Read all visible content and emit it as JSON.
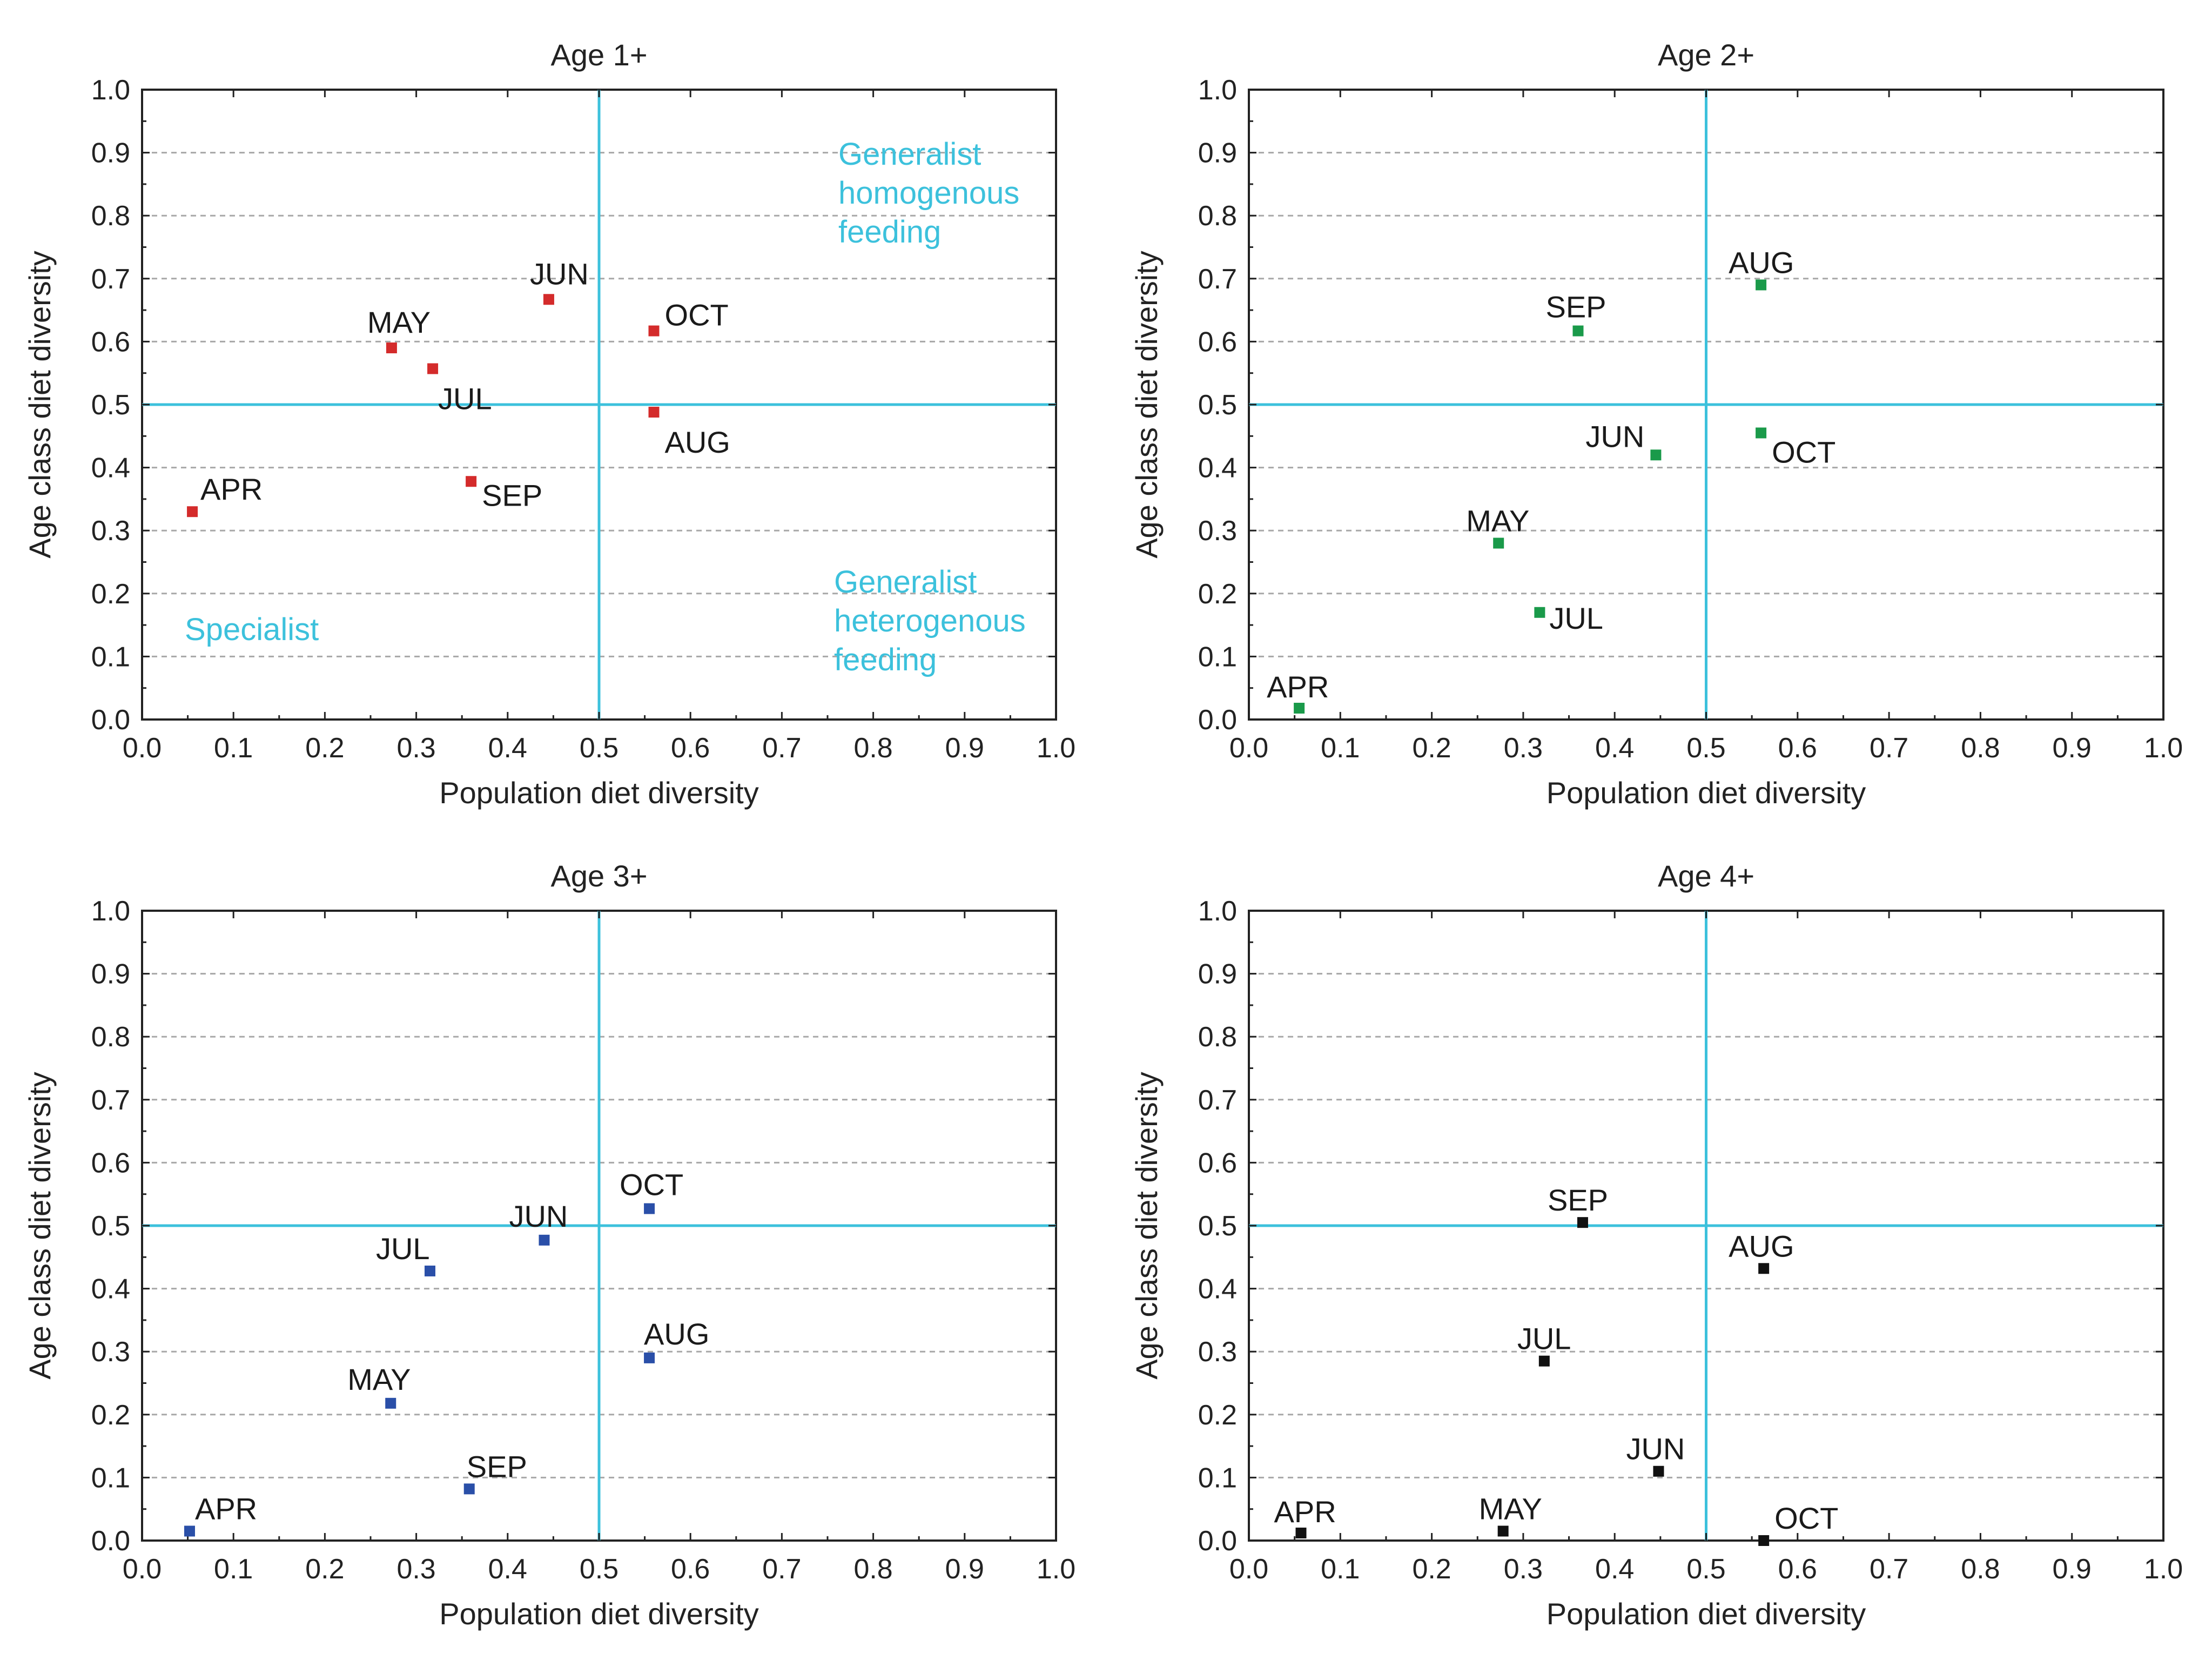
{
  "chart_data": [
    {
      "type": "scatter",
      "title": "Age 1+",
      "xlabel": "Population diet diversity",
      "ylabel": "Age class diet diversity",
      "xlim": [
        0,
        1
      ],
      "ylim": [
        0,
        1
      ],
      "xticks": [
        "0.0",
        "0.1",
        "0.2",
        "0.3",
        "0.4",
        "0.5",
        "0.6",
        "0.7",
        "0.8",
        "0.9",
        "1.0"
      ],
      "yticks": [
        "0.0",
        "0.1",
        "0.2",
        "0.3",
        "0.4",
        "0.5",
        "0.6",
        "0.7",
        "0.8",
        "0.9",
        "1.0"
      ],
      "grid": true,
      "reference_lines": {
        "x": 0.5,
        "y": 0.5
      },
      "marker_color": "#d42b2b",
      "points": [
        {
          "label": "APR",
          "x": 0.055,
          "y": 0.33
        },
        {
          "label": "MAY",
          "x": 0.273,
          "y": 0.59
        },
        {
          "label": "JUN",
          "x": 0.445,
          "y": 0.667
        },
        {
          "label": "JUL",
          "x": 0.318,
          "y": 0.557
        },
        {
          "label": "AUG",
          "x": 0.56,
          "y": 0.488
        },
        {
          "label": "SEP",
          "x": 0.36,
          "y": 0.378
        },
        {
          "label": "OCT",
          "x": 0.56,
          "y": 0.617
        }
      ],
      "annotations": [
        {
          "lines": [
            "Generalist",
            "homogenous",
            "feeding"
          ]
        },
        {
          "lines": [
            "Generalist",
            "heterogenous",
            "feeding"
          ]
        },
        {
          "lines": [
            "Specialist"
          ]
        }
      ]
    },
    {
      "type": "scatter",
      "title": "Age 2+",
      "xlabel": "Population diet diversity",
      "ylabel": "Age class diet diversity",
      "xlim": [
        0,
        1
      ],
      "ylim": [
        0,
        1
      ],
      "xticks": [
        "0.0",
        "0.1",
        "0.2",
        "0.3",
        "0.4",
        "0.5",
        "0.6",
        "0.7",
        "0.8",
        "0.9",
        "1.0"
      ],
      "yticks": [
        "0.0",
        "0.1",
        "0.2",
        "0.3",
        "0.4",
        "0.5",
        "0.6",
        "0.7",
        "0.8",
        "0.9",
        "1.0"
      ],
      "grid": true,
      "reference_lines": {
        "x": 0.5,
        "y": 0.5
      },
      "marker_color": "#1a9a4a",
      "points": [
        {
          "label": "APR",
          "x": 0.055,
          "y": 0.018
        },
        {
          "label": "MAY",
          "x": 0.273,
          "y": 0.28
        },
        {
          "label": "JUN",
          "x": 0.445,
          "y": 0.42
        },
        {
          "label": "JUL",
          "x": 0.318,
          "y": 0.17
        },
        {
          "label": "AUG",
          "x": 0.56,
          "y": 0.69
        },
        {
          "label": "SEP",
          "x": 0.36,
          "y": 0.617
        },
        {
          "label": "OCT",
          "x": 0.56,
          "y": 0.455
        }
      ],
      "annotations": []
    },
    {
      "type": "scatter",
      "title": "Age 3+",
      "xlabel": "Population diet diversity",
      "ylabel": "Age class diet diversity",
      "xlim": [
        0,
        1
      ],
      "ylim": [
        0,
        1
      ],
      "xticks": [
        "0.0",
        "0.1",
        "0.2",
        "0.3",
        "0.4",
        "0.5",
        "0.6",
        "0.7",
        "0.8",
        "0.9",
        "1.0"
      ],
      "yticks": [
        "0.0",
        "0.1",
        "0.2",
        "0.3",
        "0.4",
        "0.5",
        "0.6",
        "0.7",
        "0.8",
        "0.9",
        "1.0"
      ],
      "grid": true,
      "reference_lines": {
        "x": 0.5,
        "y": 0.5
      },
      "marker_color": "#2a4fa8",
      "points": [
        {
          "label": "APR",
          "x": 0.052,
          "y": 0.015
        },
        {
          "label": "MAY",
          "x": 0.272,
          "y": 0.218
        },
        {
          "label": "JUN",
          "x": 0.44,
          "y": 0.477
        },
        {
          "label": "JUL",
          "x": 0.315,
          "y": 0.428
        },
        {
          "label": "AUG",
          "x": 0.555,
          "y": 0.29
        },
        {
          "label": "SEP",
          "x": 0.358,
          "y": 0.082
        },
        {
          "label": "OCT",
          "x": 0.555,
          "y": 0.527
        }
      ],
      "annotations": []
    },
    {
      "type": "scatter",
      "title": "Age 4+",
      "xlabel": "Population diet diversity",
      "ylabel": "Age class diet diversity",
      "xlim": [
        0,
        1
      ],
      "ylim": [
        0,
        1
      ],
      "xticks": [
        "0.0",
        "0.1",
        "0.2",
        "0.3",
        "0.4",
        "0.5",
        "0.6",
        "0.7",
        "0.8",
        "0.9",
        "1.0"
      ],
      "yticks": [
        "0.0",
        "0.1",
        "0.2",
        "0.3",
        "0.4",
        "0.5",
        "0.6",
        "0.7",
        "0.8",
        "0.9",
        "1.0"
      ],
      "grid": true,
      "reference_lines": {
        "x": 0.5,
        "y": 0.5
      },
      "marker_color": "#111111",
      "points": [
        {
          "label": "APR",
          "x": 0.057,
          "y": 0.012
        },
        {
          "label": "MAY",
          "x": 0.278,
          "y": 0.015
        },
        {
          "label": "JUN",
          "x": 0.448,
          "y": 0.11
        },
        {
          "label": "JUL",
          "x": 0.323,
          "y": 0.285
        },
        {
          "label": "AUG",
          "x": 0.563,
          "y": 0.432
        },
        {
          "label": "SEP",
          "x": 0.365,
          "y": 0.505
        },
        {
          "label": "OCT",
          "x": 0.563,
          "y": 0.0
        }
      ],
      "annotations": []
    }
  ],
  "colors": {
    "quadrant_line": "#3cc1dc",
    "annotation_text": "#3cc1dc"
  }
}
